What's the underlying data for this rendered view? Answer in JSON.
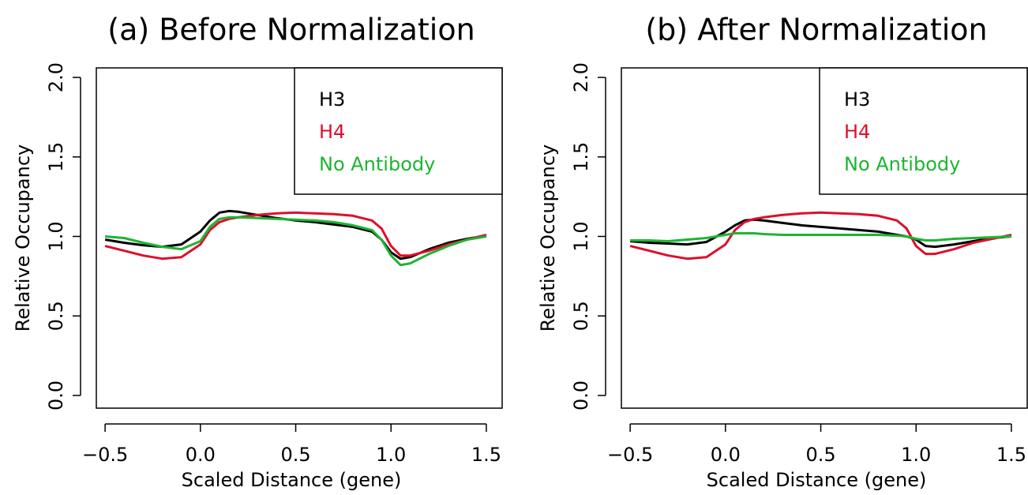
{
  "chart_data": [
    {
      "type": "line",
      "title": "(a)  Before Normalization",
      "x_label": "Scaled Distance (gene)",
      "y_label": "Relative Occupancy",
      "x": [
        -0.5,
        -0.4,
        -0.3,
        -0.2,
        -0.1,
        0,
        0.05,
        0.1,
        0.15,
        0.2,
        0.3,
        0.4,
        0.5,
        0.6,
        0.7,
        0.8,
        0.9,
        0.95,
        1.0,
        1.05,
        1.1,
        1.2,
        1.3,
        1.4,
        1.5
      ],
      "series": [
        {
          "name": "H3",
          "color": "#000000",
          "values": [
            0.98,
            0.96,
            0.945,
            0.935,
            0.95,
            1.03,
            1.1,
            1.15,
            1.16,
            1.155,
            1.135,
            1.115,
            1.1,
            1.09,
            1.075,
            1.06,
            1.03,
            0.98,
            0.9,
            0.86,
            0.87,
            0.92,
            0.96,
            0.985,
            1.005
          ]
        },
        {
          "name": "H4",
          "color": "#dc0f2d",
          "values": [
            0.94,
            0.91,
            0.88,
            0.86,
            0.87,
            0.95,
            1.04,
            1.09,
            1.11,
            1.12,
            1.135,
            1.145,
            1.15,
            1.145,
            1.14,
            1.13,
            1.1,
            1.05,
            0.94,
            0.88,
            0.88,
            0.91,
            0.95,
            0.98,
            1.01
          ]
        },
        {
          "name": "No Antibody",
          "color": "#1eb432",
          "values": [
            1.0,
            0.99,
            0.96,
            0.935,
            0.92,
            0.97,
            1.06,
            1.11,
            1.12,
            1.12,
            1.115,
            1.11,
            1.105,
            1.1,
            1.09,
            1.07,
            1.04,
            0.98,
            0.88,
            0.82,
            0.83,
            0.89,
            0.94,
            0.98,
            1.0
          ]
        }
      ],
      "xlim": [
        -0.546,
        1.583
      ],
      "ylim": [
        -0.08,
        2.06
      ],
      "xticks": [
        {
          "value": -0.5,
          "label": "−0.5"
        },
        {
          "value": 0,
          "label": "0.0"
        },
        0.5,
        {
          "value": 1,
          "label": "1.0"
        },
        1.5
      ],
      "yticks": [
        {
          "value": 0,
          "label": "0.0"
        },
        0.5,
        {
          "value": 1,
          "label": "1.0"
        },
        1.5,
        {
          "value": 2,
          "label": "2.0"
        }
      ],
      "legend": "topright"
    },
    {
      "type": "line",
      "title": "(b)  After Normalization",
      "x_label": "Scaled Distance (gene)",
      "y_label": "Relative Occupancy",
      "x": [
        -0.5,
        -0.4,
        -0.3,
        -0.2,
        -0.1,
        0,
        0.05,
        0.1,
        0.15,
        0.2,
        0.3,
        0.4,
        0.5,
        0.6,
        0.7,
        0.8,
        0.9,
        0.95,
        1.0,
        1.05,
        1.1,
        1.2,
        1.3,
        1.4,
        1.5
      ],
      "series": [
        {
          "name": "H3",
          "color": "#000000",
          "values": [
            0.97,
            0.96,
            0.955,
            0.95,
            0.965,
            1.03,
            1.07,
            1.1,
            1.105,
            1.1,
            1.085,
            1.07,
            1.06,
            1.05,
            1.04,
            1.03,
            1.01,
            1.0,
            0.98,
            0.94,
            0.935,
            0.95,
            0.97,
            0.99,
            1.0
          ]
        },
        {
          "name": "H4",
          "color": "#dc0f2d",
          "values": [
            0.94,
            0.91,
            0.88,
            0.86,
            0.87,
            0.95,
            1.04,
            1.09,
            1.11,
            1.12,
            1.135,
            1.145,
            1.15,
            1.145,
            1.14,
            1.13,
            1.1,
            1.05,
            0.94,
            0.89,
            0.89,
            0.92,
            0.96,
            0.985,
            1.01
          ]
        },
        {
          "name": "No Antibody",
          "color": "#1eb432",
          "values": [
            0.975,
            0.975,
            0.97,
            0.98,
            0.99,
            1.01,
            1.02,
            1.02,
            1.02,
            1.015,
            1.01,
            1.01,
            1.01,
            1.01,
            1.01,
            1.01,
            1.005,
            1.0,
            0.985,
            0.975,
            0.975,
            0.985,
            0.99,
            0.995,
            1.0
          ]
        }
      ],
      "xlim": [
        -0.546,
        1.583
      ],
      "ylim": [
        -0.08,
        2.06
      ],
      "xticks": [
        {
          "value": -0.5,
          "label": "−0.5"
        },
        {
          "value": 0,
          "label": "0.0"
        },
        0.5,
        {
          "value": 1,
          "label": "1.0"
        },
        1.5
      ],
      "yticks": [
        {
          "value": 0,
          "label": "0.0"
        },
        0.5,
        {
          "value": 1,
          "label": "1.0"
        },
        1.5,
        {
          "value": 2,
          "label": "2.0"
        }
      ],
      "legend": "topright"
    }
  ]
}
